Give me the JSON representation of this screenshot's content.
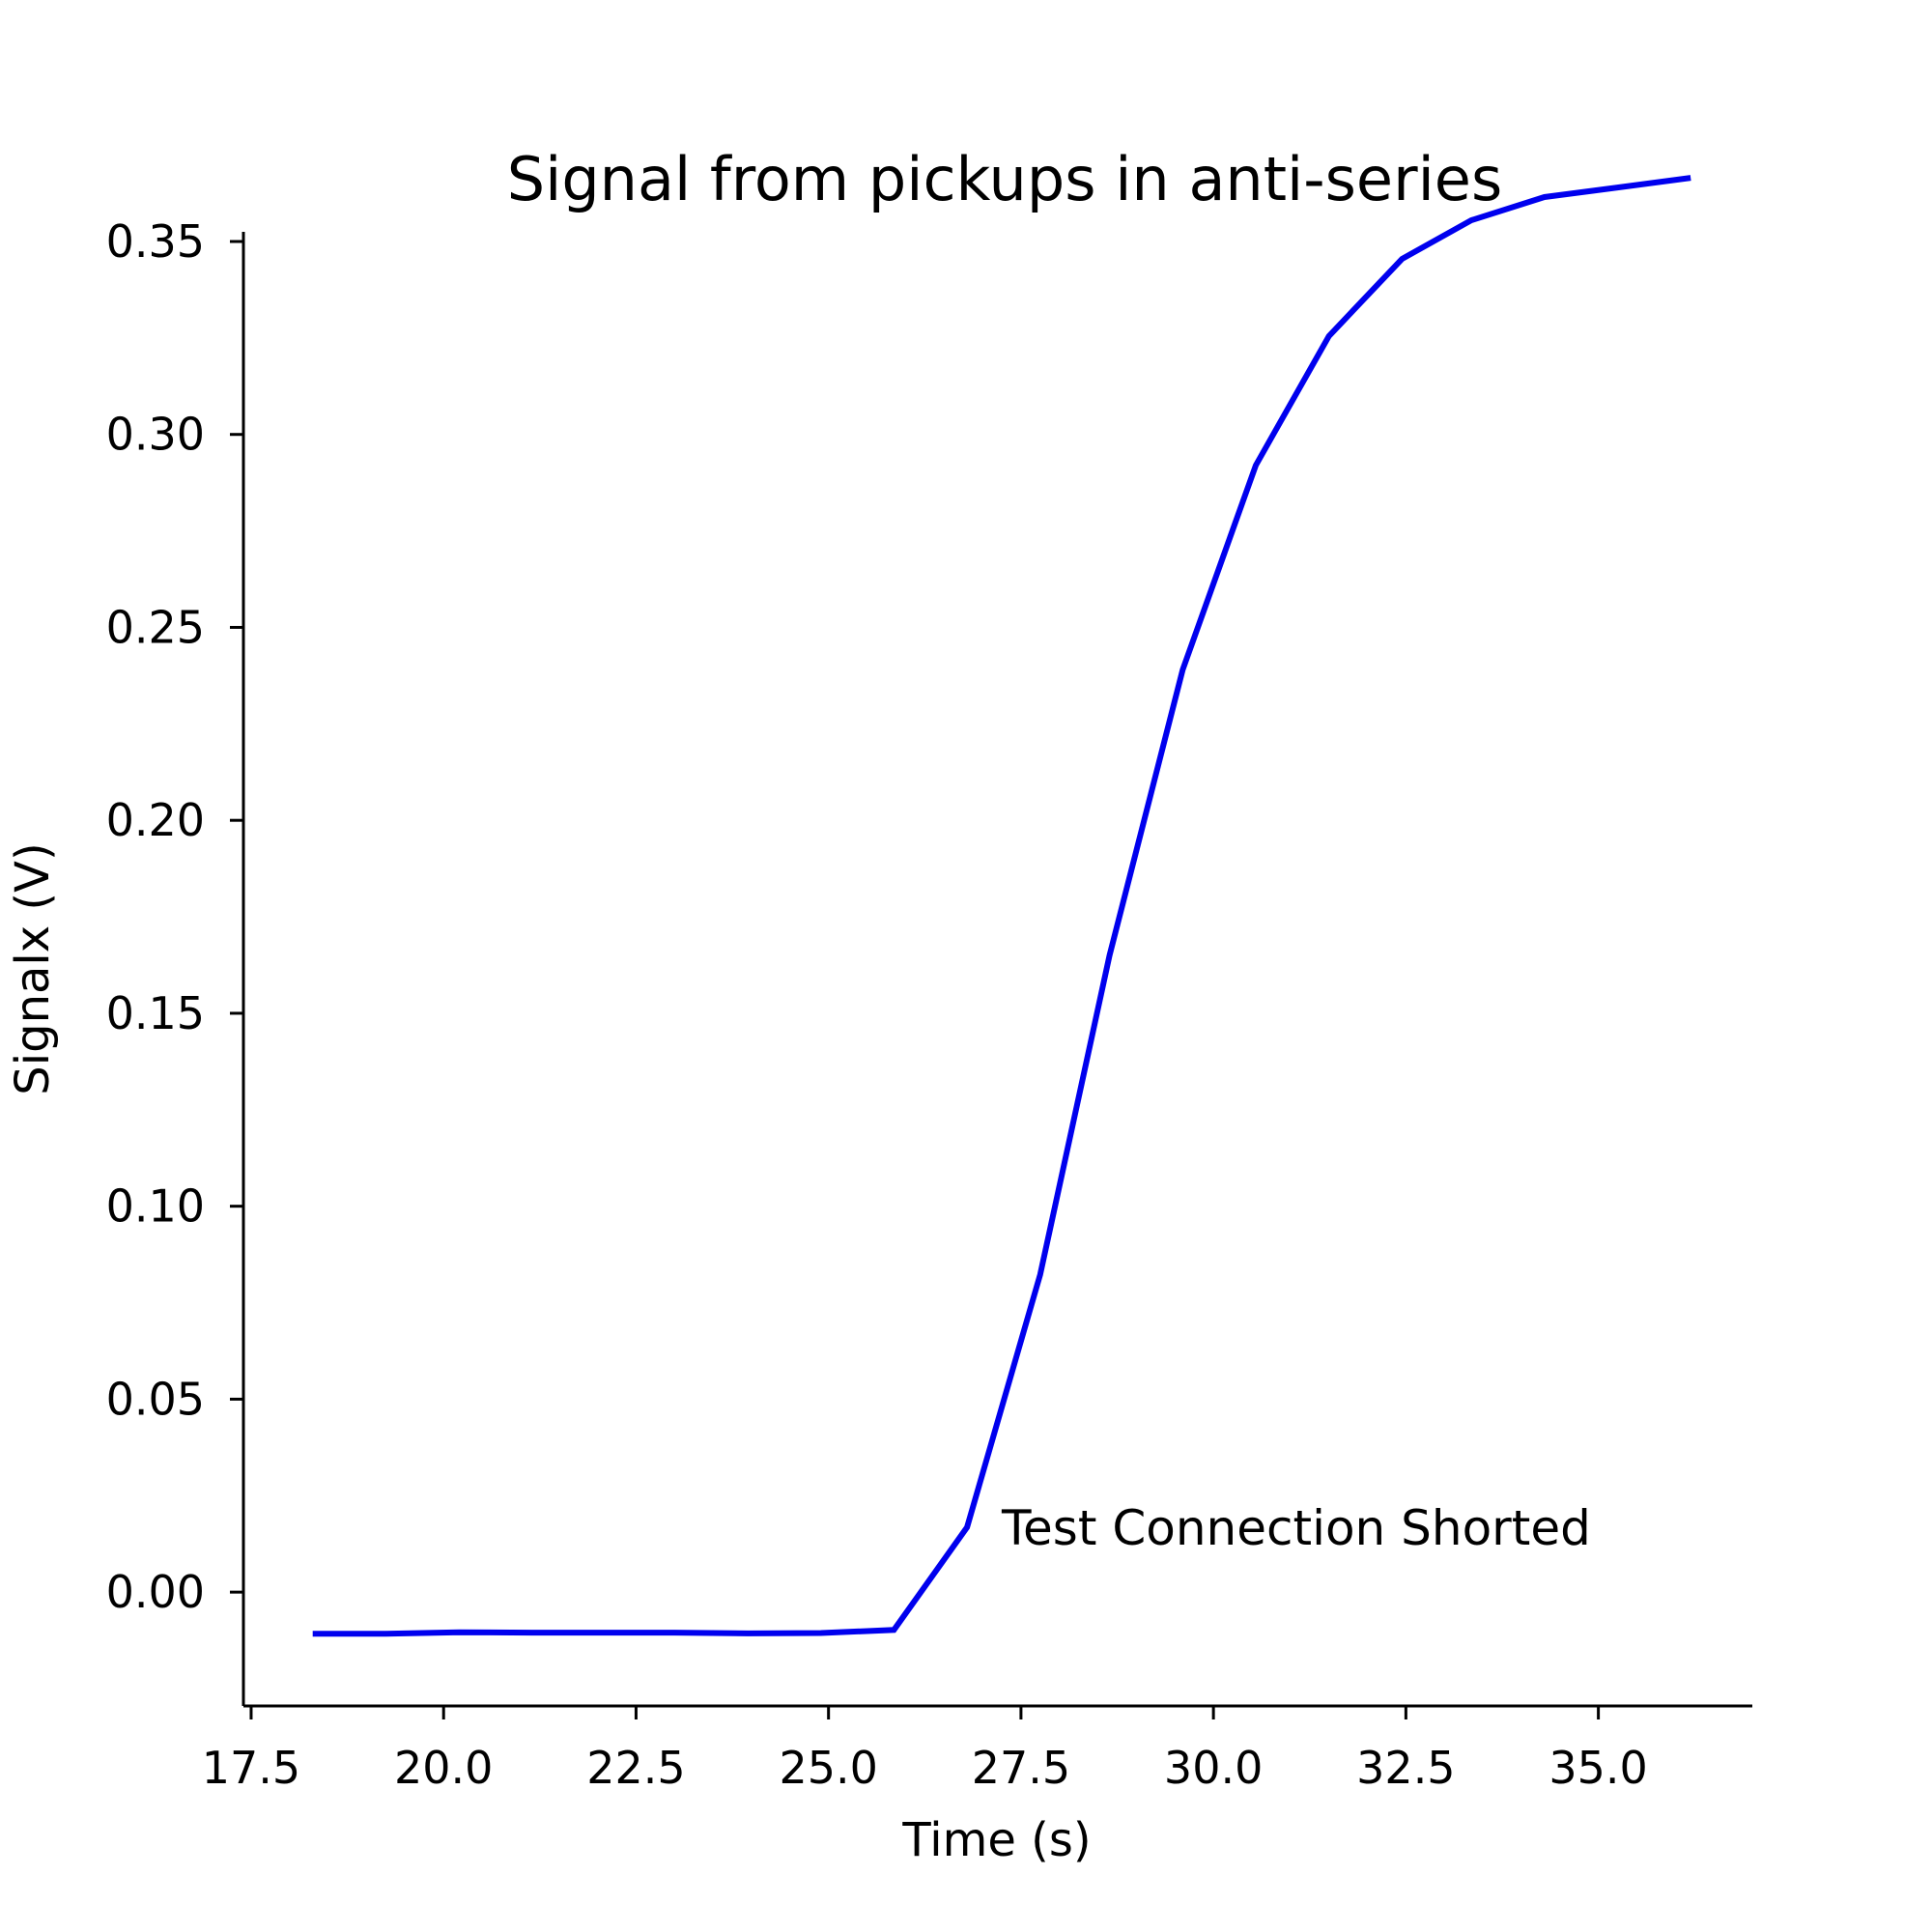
{
  "chart_data": {
    "type": "line",
    "title": "Signal from pickups in anti-series",
    "xlabel": "Time (s)",
    "ylabel": "Signalx (V)",
    "xlim": [
      17.4,
      37.0
    ],
    "ylim": [
      -0.0295,
      0.3525
    ],
    "grid": false,
    "x_ticks": [
      "17.5",
      "20.0",
      "22.5",
      "25.0",
      "27.5",
      "30.0",
      "32.5",
      "35.0"
    ],
    "x_tick_values": [
      17.5,
      20.0,
      22.5,
      25.0,
      27.5,
      30.0,
      32.5,
      35.0
    ],
    "y_ticks": [
      "0.00",
      "0.05",
      "0.10",
      "0.15",
      "0.20",
      "0.25",
      "0.30",
      "0.35"
    ],
    "y_tick_values": [
      0.0,
      0.05,
      0.1,
      0.15,
      0.2,
      0.25,
      0.3,
      0.35
    ],
    "series": [
      {
        "color": "#0000ee",
        "x": [
          18.3,
          19.25,
          20.2,
          21.15,
          22.1,
          23.0,
          23.95,
          24.9,
          25.85,
          26.8,
          27.75,
          28.65,
          29.6,
          30.55,
          31.5,
          32.45,
          33.35,
          34.3,
          35.25,
          36.2
        ],
        "y": [
          -0.0108,
          -0.0108,
          -0.0104,
          -0.0105,
          -0.0105,
          -0.0105,
          -0.0107,
          -0.0106,
          -0.0098,
          0.0168,
          0.0823,
          0.165,
          0.239,
          0.292,
          0.3255,
          0.3455,
          0.3555,
          0.3615,
          0.364,
          0.3665
        ]
      }
    ],
    "annotations": [
      {
        "text": "Test Connection Shorted",
        "x": 27.25,
        "y": 0.0168
      }
    ]
  }
}
